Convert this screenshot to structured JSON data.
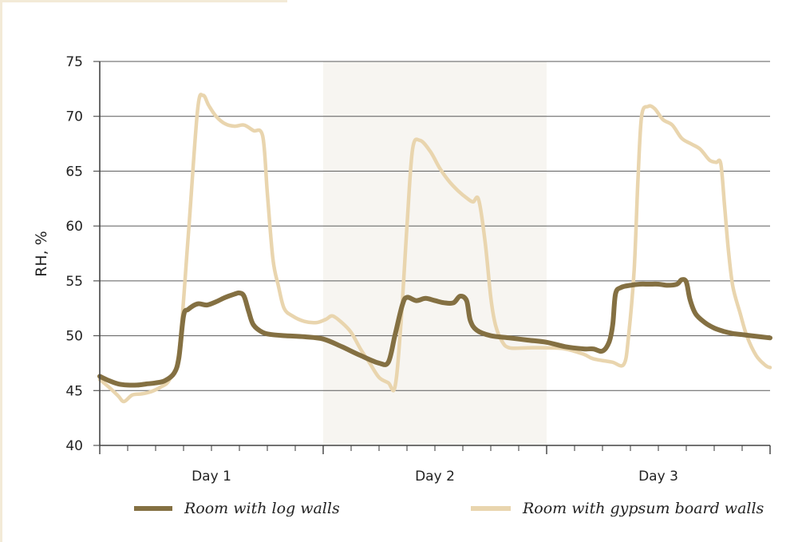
{
  "chart_data": {
    "type": "line",
    "ylabel": "RH, %",
    "ylim": [
      40,
      75
    ],
    "yticks": [
      "40",
      "45",
      "50",
      "55",
      "60",
      "65",
      "70",
      "75"
    ],
    "xlim": [
      0,
      72
    ],
    "x_labels": [
      {
        "x": 12,
        "label": "Day 1"
      },
      {
        "x": 36,
        "label": "Day 2"
      },
      {
        "x": 60,
        "label": "Day 3"
      }
    ],
    "shaded_x_range": [
      24,
      48
    ],
    "grid": true,
    "legend_position": "bottom",
    "series": [
      {
        "name": "Room with log walls",
        "color": "#847042",
        "points": [
          [
            0,
            46.3
          ],
          [
            1,
            45.9
          ],
          [
            2,
            45.6
          ],
          [
            3,
            45.5
          ],
          [
            4,
            45.5
          ],
          [
            5,
            45.6
          ],
          [
            6,
            45.7
          ],
          [
            7,
            45.9
          ],
          [
            8,
            46.6
          ],
          [
            8.5,
            48.0
          ],
          [
            9,
            51.8
          ],
          [
            9.5,
            52.4
          ],
          [
            10.5,
            52.9
          ],
          [
            11.5,
            52.8
          ],
          [
            12.5,
            53.1
          ],
          [
            13.5,
            53.5
          ],
          [
            14.5,
            53.8
          ],
          [
            15,
            53.9
          ],
          [
            15.5,
            53.6
          ],
          [
            16,
            52.2
          ],
          [
            16.5,
            51.0
          ],
          [
            17.5,
            50.3
          ],
          [
            18.5,
            50.1
          ],
          [
            20,
            50.0
          ],
          [
            22,
            49.9
          ],
          [
            24,
            49.7
          ],
          [
            26,
            49.0
          ],
          [
            28,
            48.2
          ],
          [
            30,
            47.5
          ],
          [
            31,
            47.6
          ],
          [
            31.7,
            50.0
          ],
          [
            32.5,
            52.8
          ],
          [
            33,
            53.5
          ],
          [
            34,
            53.2
          ],
          [
            35,
            53.4
          ],
          [
            36,
            53.2
          ],
          [
            37,
            53.0
          ],
          [
            38,
            53.0
          ],
          [
            38.7,
            53.6
          ],
          [
            39.4,
            53.2
          ],
          [
            39.8,
            51.4
          ],
          [
            40.5,
            50.5
          ],
          [
            42,
            50.0
          ],
          [
            44,
            49.8
          ],
          [
            46,
            49.6
          ],
          [
            48,
            49.4
          ],
          [
            50,
            49.0
          ],
          [
            52,
            48.8
          ],
          [
            53,
            48.8
          ],
          [
            54,
            48.6
          ],
          [
            54.7,
            49.4
          ],
          [
            55.1,
            51.0
          ],
          [
            55.4,
            53.8
          ],
          [
            56,
            54.4
          ],
          [
            57,
            54.6
          ],
          [
            58,
            54.7
          ],
          [
            59,
            54.7
          ],
          [
            60,
            54.7
          ],
          [
            61,
            54.6
          ],
          [
            62,
            54.7
          ],
          [
            62.5,
            55.1
          ],
          [
            63,
            54.9
          ],
          [
            63.4,
            53.3
          ],
          [
            64,
            52.0
          ],
          [
            65,
            51.2
          ],
          [
            66,
            50.7
          ],
          [
            67,
            50.4
          ],
          [
            68,
            50.2
          ],
          [
            69,
            50.1
          ],
          [
            70,
            50.0
          ],
          [
            72,
            49.8
          ]
        ]
      },
      {
        "name": "Room with gypsum board walls",
        "color": "#e9d5ae",
        "points": [
          [
            0,
            46.0
          ],
          [
            1,
            45.3
          ],
          [
            2,
            44.5
          ],
          [
            2.6,
            44.0
          ],
          [
            3.5,
            44.6
          ],
          [
            4.5,
            44.7
          ],
          [
            5.5,
            44.9
          ],
          [
            6.5,
            45.3
          ],
          [
            7.5,
            46.0
          ],
          [
            8.5,
            48.5
          ],
          [
            9.5,
            59.0
          ],
          [
            10.5,
            70.5
          ],
          [
            11.1,
            71.9
          ],
          [
            11.7,
            71.0
          ],
          [
            12.5,
            70.0
          ],
          [
            13.5,
            69.3
          ],
          [
            14.5,
            69.1
          ],
          [
            15.5,
            69.2
          ],
          [
            16.5,
            68.7
          ],
          [
            17.5,
            68.2
          ],
          [
            18,
            63.0
          ],
          [
            18.6,
            57.0
          ],
          [
            19.2,
            54.5
          ],
          [
            19.8,
            52.5
          ],
          [
            20.7,
            51.8
          ],
          [
            22,
            51.3
          ],
          [
            23.3,
            51.2
          ],
          [
            24.3,
            51.5
          ],
          [
            25,
            51.8
          ],
          [
            26,
            51.2
          ],
          [
            27,
            50.3
          ],
          [
            28,
            48.8
          ],
          [
            29,
            47.5
          ],
          [
            30,
            46.2
          ],
          [
            31,
            45.7
          ],
          [
            31.7,
            45.3
          ],
          [
            32.3,
            50.5
          ],
          [
            33,
            60.0
          ],
          [
            33.6,
            67.0
          ],
          [
            34.4,
            67.8
          ],
          [
            35.5,
            66.8
          ],
          [
            36.5,
            65.3
          ],
          [
            37.5,
            64.1
          ],
          [
            38.5,
            63.2
          ],
          [
            39.5,
            62.5
          ],
          [
            40.1,
            62.2
          ],
          [
            40.7,
            62.4
          ],
          [
            41.4,
            58.5
          ],
          [
            42,
            53.5
          ],
          [
            42.5,
            51.0
          ],
          [
            43.2,
            49.5
          ],
          [
            44,
            48.9
          ],
          [
            46,
            48.9
          ],
          [
            48,
            48.9
          ],
          [
            50,
            48.8
          ],
          [
            52,
            48.3
          ],
          [
            53,
            47.9
          ],
          [
            55,
            47.6
          ],
          [
            56.3,
            47.4
          ],
          [
            56.8,
            50.0
          ],
          [
            57.4,
            56.0
          ],
          [
            57.8,
            64.0
          ],
          [
            58.2,
            70.0
          ],
          [
            58.9,
            70.9
          ],
          [
            59.6,
            70.7
          ],
          [
            60.5,
            69.7
          ],
          [
            61.5,
            69.2
          ],
          [
            62.5,
            68.0
          ],
          [
            63.5,
            67.5
          ],
          [
            64.5,
            67.0
          ],
          [
            65.5,
            66.0
          ],
          [
            66.2,
            65.8
          ],
          [
            66.7,
            65.7
          ],
          [
            67.1,
            62.0
          ],
          [
            67.5,
            58.0
          ],
          [
            68,
            54.5
          ],
          [
            68.8,
            52.0
          ],
          [
            69.5,
            50.0
          ],
          [
            70.5,
            48.2
          ],
          [
            71.5,
            47.3
          ],
          [
            72,
            47.1
          ]
        ]
      }
    ]
  }
}
